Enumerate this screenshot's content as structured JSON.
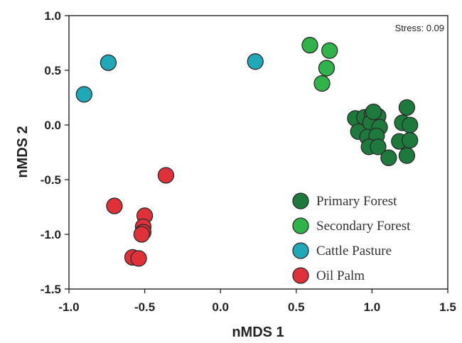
{
  "chart_data": {
    "type": "scatter",
    "title": "",
    "xlabel": "nMDS 1",
    "ylabel": "nMDS 2",
    "xlim": [
      -1.0,
      1.5
    ],
    "ylim": [
      -1.5,
      1.0
    ],
    "x_ticks": [
      -1.0,
      -0.5,
      0.0,
      0.5,
      1.0,
      1.5
    ],
    "y_ticks": [
      1.0,
      0.5,
      0.0,
      -0.5,
      -1.0,
      -1.5
    ],
    "x_tick_labels": [
      "-1.0",
      "-0.5",
      "0.0",
      "0.5",
      "1.0",
      "1.5"
    ],
    "y_tick_labels": [
      "1.0",
      "0.5",
      "0.0",
      "-0.5",
      "-1.0",
      "-1.5"
    ],
    "annotation": "Stress: 0.09",
    "grid": false,
    "legend_position": "bottom-right",
    "series": [
      {
        "name": "Primary Forest",
        "color": "#1e7a3c",
        "points": [
          [
            0.89,
            0.06
          ],
          [
            0.95,
            0.07
          ],
          [
            1.0,
            0.1
          ],
          [
            1.04,
            0.08
          ],
          [
            0.91,
            -0.06
          ],
          [
            0.99,
            0.02
          ],
          [
            1.05,
            -0.02
          ],
          [
            0.97,
            -0.11
          ],
          [
            1.03,
            -0.1
          ],
          [
            0.98,
            -0.2
          ],
          [
            1.04,
            -0.2
          ],
          [
            1.11,
            -0.3
          ],
          [
            1.18,
            -0.15
          ],
          [
            1.2,
            0.02
          ],
          [
            1.23,
            0.16
          ],
          [
            1.25,
            0.0
          ],
          [
            1.25,
            -0.14
          ],
          [
            1.23,
            -0.28
          ],
          [
            1.01,
            0.12
          ]
        ]
      },
      {
        "name": "Secondary Forest",
        "color": "#2fb34a",
        "points": [
          [
            0.59,
            0.73
          ],
          [
            0.72,
            0.68
          ],
          [
            0.7,
            0.52
          ],
          [
            0.67,
            0.38
          ]
        ]
      },
      {
        "name": "Cattle Pasture",
        "color": "#1fa8b8",
        "points": [
          [
            -0.74,
            0.57
          ],
          [
            -0.9,
            0.28
          ],
          [
            0.23,
            0.58
          ]
        ]
      },
      {
        "name": "Oil Palm",
        "color": "#e0303a",
        "points": [
          [
            -0.36,
            -0.46
          ],
          [
            -0.7,
            -0.74
          ],
          [
            -0.5,
            -0.83
          ],
          [
            -0.51,
            -0.93
          ],
          [
            -0.51,
            -0.98
          ],
          [
            -0.52,
            -1.0
          ],
          [
            -0.58,
            -1.21
          ],
          [
            -0.54,
            -1.22
          ]
        ]
      }
    ]
  }
}
